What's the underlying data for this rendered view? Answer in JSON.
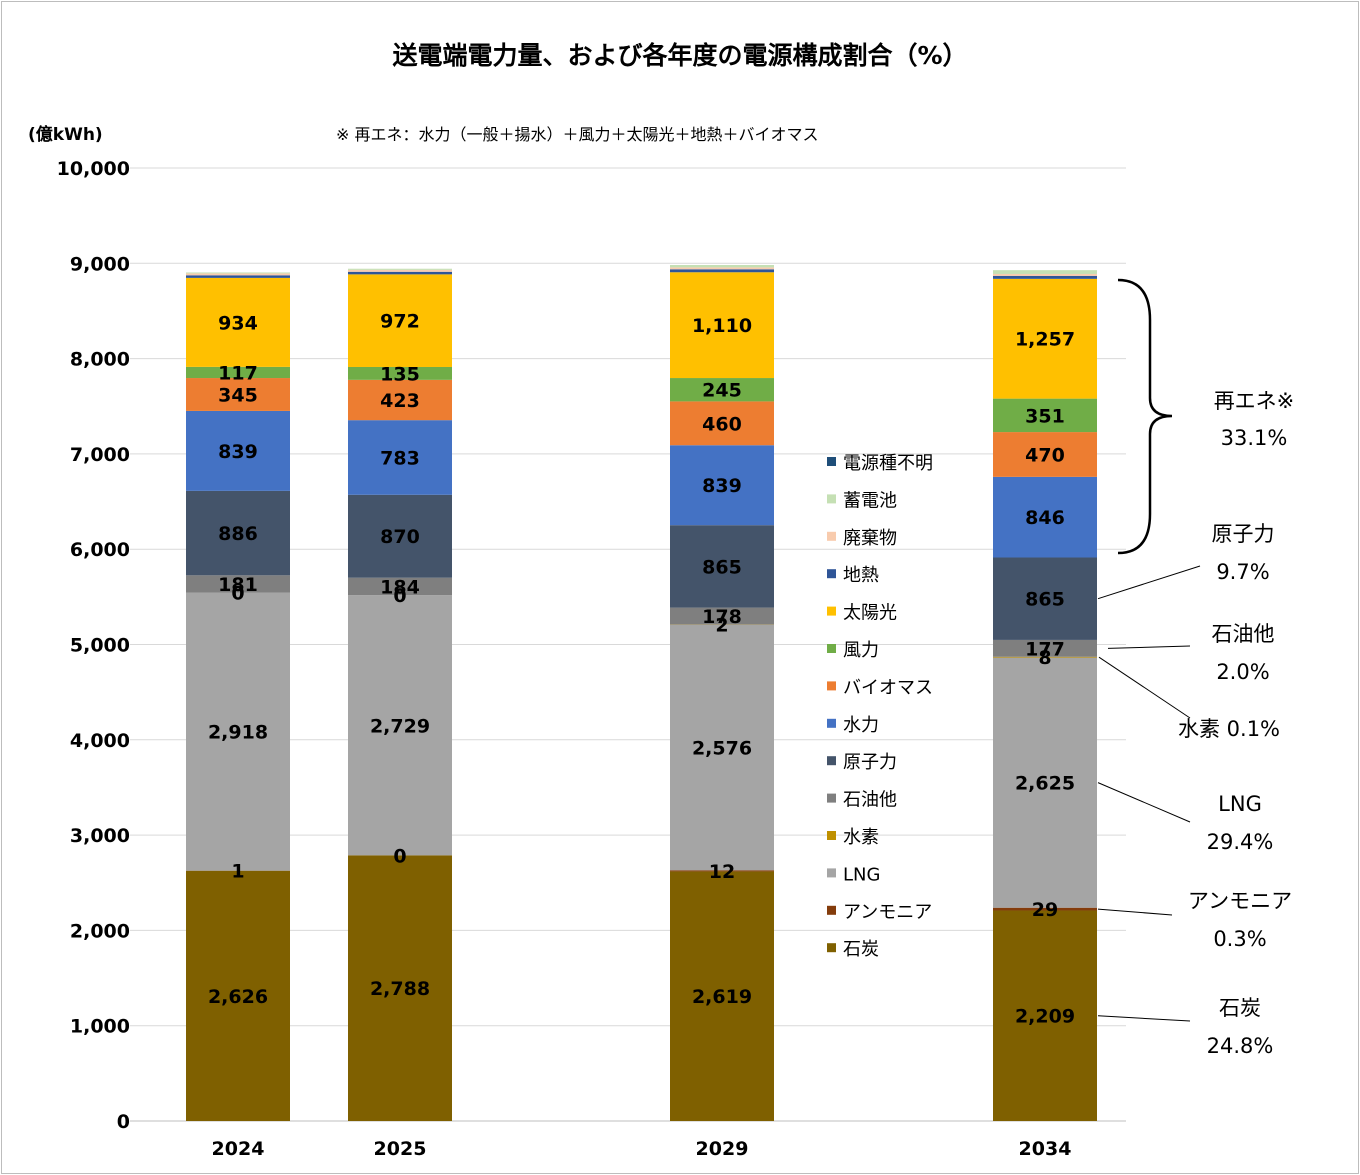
{
  "chart_data": {
    "type": "bar",
    "stacked": true,
    "title": "送電端電力量、および各年度の電源構成割合（%）",
    "unit_label": "(億kWh)",
    "note": "※ 再エネ：水力（一般＋揚水）＋風力＋太陽光＋地熱＋バイオマス",
    "categories": [
      "2024",
      "2025",
      "2029",
      "2034"
    ],
    "ylim": [
      0,
      10000
    ],
    "yticks": [
      "0",
      "1,000",
      "2,000",
      "3,000",
      "4,000",
      "5,000",
      "6,000",
      "7,000",
      "8,000",
      "9,000",
      "10,000"
    ],
    "grid": true,
    "legend_position": "right",
    "series": [
      {
        "name": "石炭",
        "color": "#7f6000",
        "values": [
          2626,
          2788,
          2619,
          2209
        ],
        "labels": [
          "2,626",
          "2,788",
          "2,619",
          "2,209"
        ]
      },
      {
        "name": "アンモニア",
        "color": "#843c0c",
        "values": [
          1,
          0,
          12,
          29
        ],
        "labels": [
          "1",
          "0",
          "12",
          "29"
        ]
      },
      {
        "name": "LNG",
        "color": "#a5a5a5",
        "values": [
          2918,
          2729,
          2576,
          2625
        ],
        "labels": [
          "2,918",
          "2,729",
          "2,576",
          "2,625"
        ]
      },
      {
        "name": "水素",
        "color": "#bf9000",
        "values": [
          0,
          0,
          2,
          8
        ],
        "labels": [
          "0",
          "0",
          "2",
          "8"
        ]
      },
      {
        "name": "石油他",
        "color": "#7f7f7f",
        "values": [
          181,
          184,
          178,
          177
        ],
        "labels": [
          "181",
          "184",
          "178",
          "177"
        ]
      },
      {
        "name": "原子力",
        "color": "#44546a",
        "values": [
          886,
          870,
          865,
          865
        ],
        "labels": [
          "886",
          "870",
          "865",
          "865"
        ]
      },
      {
        "name": "水力",
        "color": "#4472c4",
        "values": [
          839,
          783,
          839,
          846
        ],
        "labels": [
          "839",
          "783",
          "839",
          "846"
        ]
      },
      {
        "name": "バイオマス",
        "color": "#ed7d31",
        "values": [
          345,
          423,
          460,
          470
        ],
        "labels": [
          "345",
          "423",
          "460",
          "470"
        ]
      },
      {
        "name": "風力",
        "color": "#70ad47",
        "values": [
          117,
          135,
          245,
          351
        ],
        "labels": [
          "117",
          "135",
          "245",
          "351"
        ]
      },
      {
        "name": "太陽光",
        "color": "#ffc000",
        "values": [
          934,
          972,
          1110,
          1257
        ],
        "labels": [
          "934",
          "972",
          "1,110",
          "1,257"
        ]
      },
      {
        "name": "地熱",
        "color": "#2f5597",
        "values": [
          27,
          27,
          31,
          31
        ],
        "labels": [
          "",
          "",
          "",
          ""
        ]
      },
      {
        "name": "廃棄物",
        "color": "#f8cbad",
        "values": [
          20,
          20,
          20,
          20
        ],
        "labels": [
          "",
          "",
          "",
          ""
        ]
      },
      {
        "name": "蓄電池",
        "color": "#c5e0b4",
        "values": [
          10,
          12,
          25,
          40
        ],
        "labels": [
          "",
          "",
          "",
          ""
        ]
      },
      {
        "name": "電源種不明",
        "color": "#1f4e79",
        "values": [
          0,
          0,
          0,
          0
        ],
        "labels": [
          "",
          "",
          "",
          ""
        ]
      }
    ],
    "annotations": [
      {
        "name": "再エネ※",
        "pct": "33.1%"
      },
      {
        "name": "原子力",
        "pct": "9.7%"
      },
      {
        "name": "石油他",
        "pct": "2.0%"
      },
      {
        "name": "水素",
        "pct": "0.1%"
      },
      {
        "name": "LNG",
        "pct": "29.4%"
      },
      {
        "name": "アンモニア",
        "pct": "0.3%"
      },
      {
        "name": "石炭",
        "pct": "24.8%"
      }
    ]
  }
}
